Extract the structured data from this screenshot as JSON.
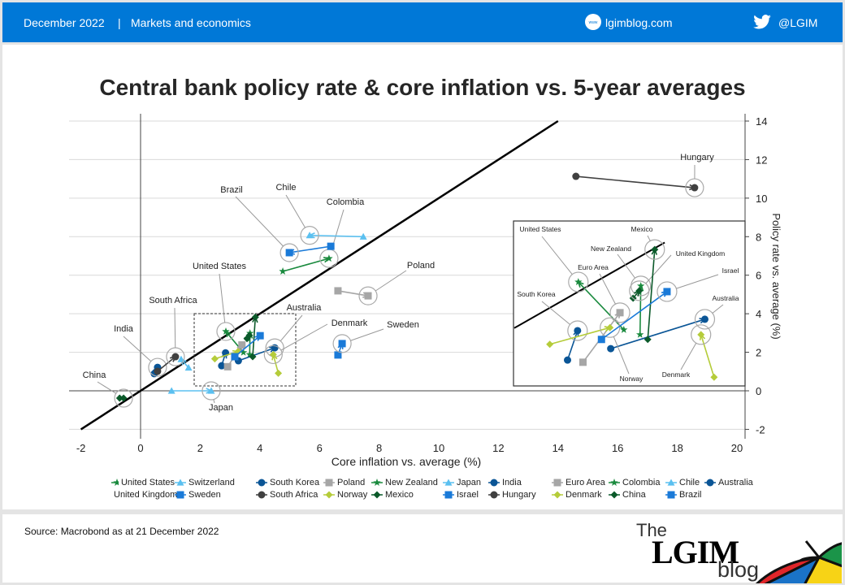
{
  "header": {
    "date": "December 2022",
    "separator": "|",
    "category": "Markets and economics",
    "website": "lgimblog.com",
    "website_icon": "www-globe-icon",
    "twitter_handle": "@LGIM",
    "twitter_icon": "twitter-bird-icon",
    "color": "#0078d7"
  },
  "title": "Central bank policy rate & core inflation vs. 5-year averages",
  "source": "Source: Macrobond as at 21 December 2022",
  "logo": {
    "the": "The",
    "name": "LGIM",
    "blog": "blog"
  },
  "chart_data": {
    "type": "scatter",
    "title": "Central bank policy rate & core inflation vs. 5-year averages",
    "xlabel": "Core inflation vs. average (%)",
    "ylabel": "Policy rate vs. average (%)",
    "xlim": [
      -2,
      20
    ],
    "ylim": [
      -2,
      14
    ],
    "xticks": [
      "-2",
      "0",
      "2",
      "4",
      "6",
      "8",
      "10",
      "12",
      "14",
      "16",
      "18",
      "20"
    ],
    "yticks": [
      "-2",
      "0",
      "2",
      "4",
      "6",
      "8",
      "10",
      "12",
      "14"
    ],
    "grid": "horizontal",
    "reference_line": "y = x",
    "legend_position": "bottom",
    "inset": {
      "xlim": [
        2.03,
        4.99
      ],
      "ylim": [
        0.71,
        4.47
      ]
    },
    "series": [
      {
        "name": "United States",
        "marker": "star",
        "color": "#1a8a3e",
        "from": [
          3.45,
          1.99
        ],
        "to": [
          2.86,
          3.08
        ]
      },
      {
        "name": "Switzerland",
        "marker": "triangle",
        "color": "#5bc0f0",
        "from": [
          1.61,
          1.2
        ],
        "to": [
          1.36,
          1.64
        ]
      },
      {
        "name": "South Korea",
        "marker": "circle",
        "color": "#0a5596",
        "from": [
          2.72,
          1.3
        ],
        "to": [
          2.85,
          1.97
        ]
      },
      {
        "name": "Poland",
        "marker": "square",
        "color": "#a6a6a6",
        "from": [
          6.62,
          5.19
        ],
        "to": [
          7.63,
          4.93
        ]
      },
      {
        "name": "New Zealand",
        "marker": "star",
        "color": "#1a8a3e",
        "from": [
          3.66,
          1.88
        ],
        "to": [
          3.67,
          2.99
        ]
      },
      {
        "name": "Japan",
        "marker": "triangle",
        "color": "#5bc0f0",
        "from": [
          1.04,
          0.0
        ],
        "to": [
          2.37,
          0.0
        ]
      },
      {
        "name": "India",
        "marker": "circle",
        "color": "#0a5596",
        "from": [
          0.46,
          0.89
        ],
        "to": [
          0.57,
          1.22
        ]
      },
      {
        "name": "Euro Area",
        "marker": "square",
        "color": "#a6a6a6",
        "from": [
          2.92,
          1.25
        ],
        "to": [
          3.4,
          2.38
        ]
      },
      {
        "name": "Colombia",
        "marker": "star",
        "color": "#1a8a3e",
        "from": [
          4.77,
          6.2
        ],
        "to": [
          6.32,
          6.87
        ]
      },
      {
        "name": "Chile",
        "marker": "triangle",
        "color": "#5bc0f0",
        "from": [
          7.47,
          8.0
        ],
        "to": [
          5.67,
          8.07
        ]
      },
      {
        "name": "Australia",
        "marker": "circle",
        "color": "#0a5596",
        "from": [
          3.28,
          1.56
        ],
        "to": [
          4.5,
          2.23
        ]
      },
      {
        "name": "United Kingdom",
        "marker": "diamond",
        "color": "#0b5a2a",
        "from": [
          3.57,
          2.71
        ],
        "to": [
          3.65,
          2.88
        ]
      },
      {
        "name": "Sweden",
        "marker": "square",
        "color": "#1a7ad8",
        "from": [
          6.62,
          1.86
        ],
        "to": [
          6.76,
          2.45
        ]
      },
      {
        "name": "South Africa",
        "marker": "circle",
        "color": "#404040",
        "from": [
          0.57,
          1.01
        ],
        "to": [
          1.17,
          1.77
        ]
      },
      {
        "name": "Norway",
        "marker": "diamond",
        "color": "#b5cc3a",
        "from": [
          2.49,
          1.66
        ],
        "to": [
          3.27,
          2.04
        ]
      },
      {
        "name": "Mexico",
        "marker": "diamond",
        "color": "#0b5a2a",
        "from": [
          3.76,
          1.77
        ],
        "to": [
          3.85,
          3.82
        ]
      },
      {
        "name": "Israel",
        "marker": "square",
        "color": "#1a7ad8",
        "from": [
          3.16,
          1.77
        ],
        "to": [
          4.01,
          2.86
        ]
      },
      {
        "name": "Hungary",
        "marker": "circle",
        "color": "#404040",
        "from": [
          14.6,
          11.13
        ],
        "to": [
          18.58,
          10.54
        ]
      },
      {
        "name": "Denmark",
        "marker": "diamond",
        "color": "#b5cc3a",
        "from": [
          4.62,
          0.91
        ],
        "to": [
          4.45,
          1.88
        ]
      },
      {
        "name": "China",
        "marker": "diamond",
        "color": "#0b5a2a",
        "from": [
          -0.7,
          -0.38
        ],
        "to": [
          -0.57,
          -0.38
        ]
      },
      {
        "name": "Brazil",
        "marker": "square",
        "color": "#1a7ad8",
        "from": [
          6.38,
          7.5
        ],
        "to": [
          4.99,
          7.17
        ]
      }
    ]
  }
}
